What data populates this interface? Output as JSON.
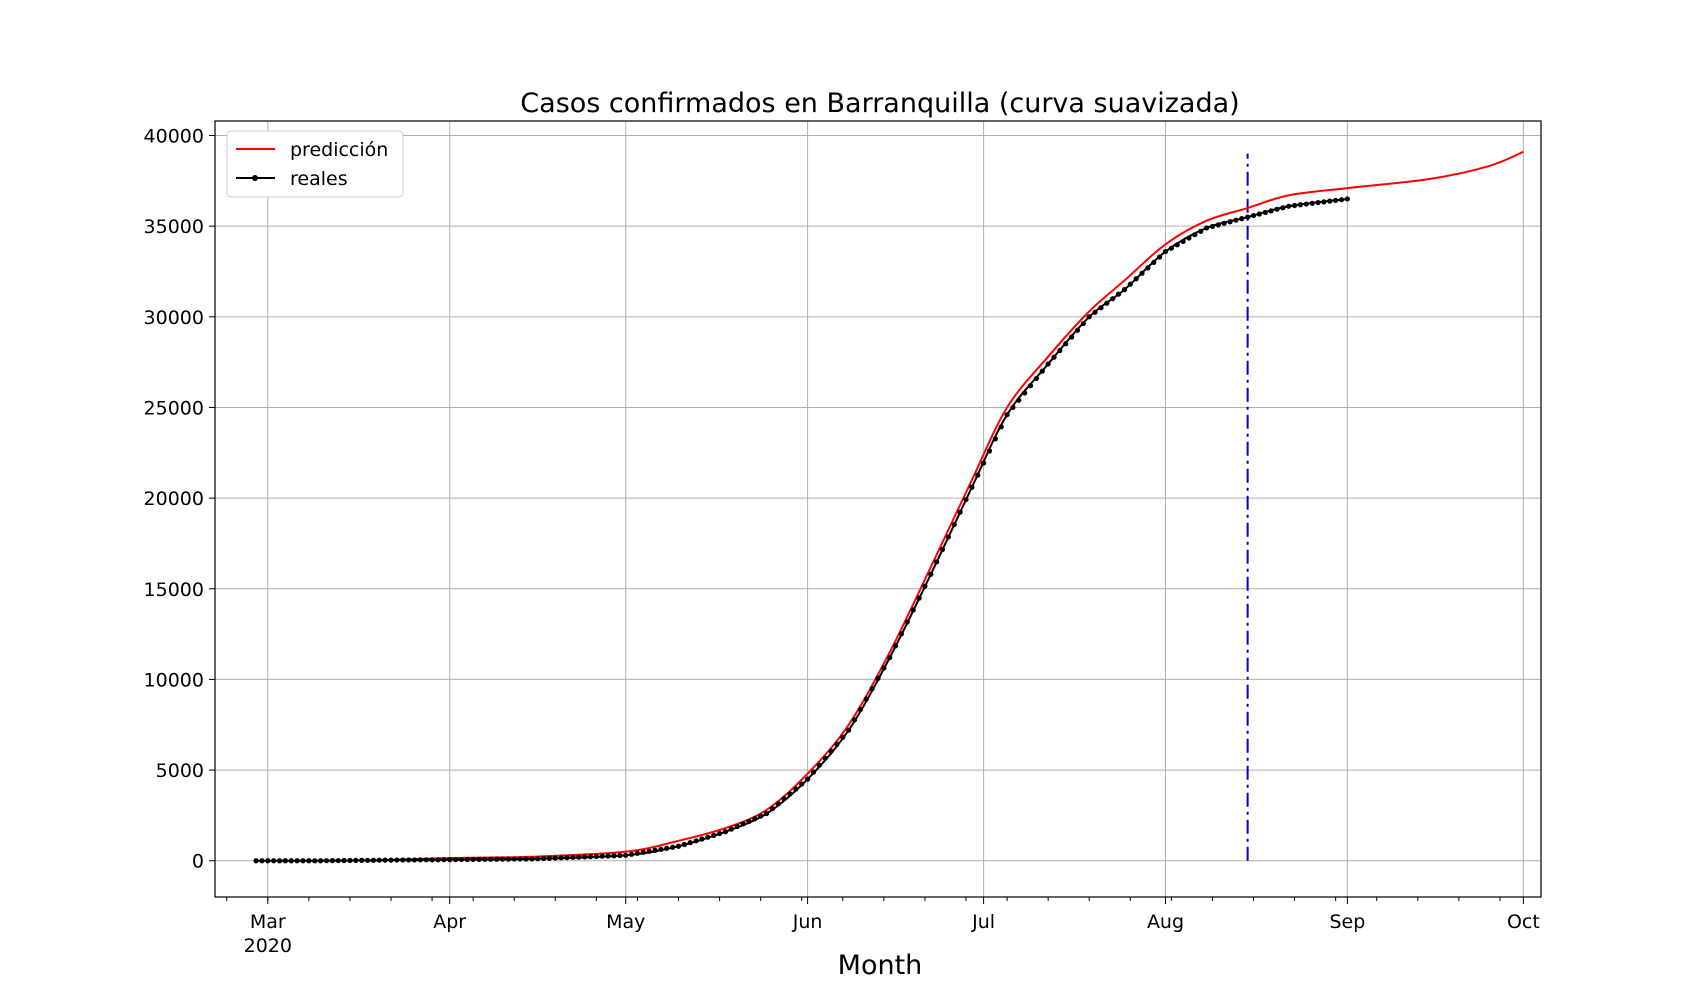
{
  "chart_data": {
    "type": "line",
    "title": "Casos confirmados en Barranquilla (curva suavizada)",
    "xlabel": "Month",
    "ylabel": "",
    "x_axis": {
      "type": "date",
      "range": [
        "2020-02-21",
        "2020-10-04"
      ],
      "tick_labels": [
        {
          "date": "2020-03-01",
          "label": "Mar",
          "sublabel": "2020"
        },
        {
          "date": "2020-04-01",
          "label": "Apr",
          "sublabel": ""
        },
        {
          "date": "2020-05-01",
          "label": "May",
          "sublabel": ""
        },
        {
          "date": "2020-06-01",
          "label": "Jun",
          "sublabel": ""
        },
        {
          "date": "2020-07-01",
          "label": "Jul",
          "sublabel": ""
        },
        {
          "date": "2020-08-01",
          "label": "Aug",
          "sublabel": ""
        },
        {
          "date": "2020-09-01",
          "label": "Sep",
          "sublabel": ""
        },
        {
          "date": "2020-10-01",
          "label": "Oct",
          "sublabel": ""
        }
      ]
    },
    "y_axis": {
      "range": [
        -2000,
        40800
      ],
      "ticks": [
        0,
        5000,
        10000,
        15000,
        20000,
        25000,
        30000,
        35000,
        40000
      ],
      "tick_labels": [
        "0",
        "5000",
        "10000",
        "15000",
        "20000",
        "25000",
        "30000",
        "35000",
        "40000"
      ]
    },
    "grid": true,
    "legend": {
      "position": "upper-left"
    },
    "series": [
      {
        "name": "predicción",
        "color": "#ff0000",
        "style": "solid",
        "points": [
          [
            "2020-03-18",
            0
          ],
          [
            "2020-04-01",
            150
          ],
          [
            "2020-04-15",
            220
          ],
          [
            "2020-05-01",
            500
          ],
          [
            "2020-05-10",
            1100
          ],
          [
            "2020-05-18",
            1800
          ],
          [
            "2020-05-25",
            2800
          ],
          [
            "2020-06-01",
            4800
          ],
          [
            "2020-06-08",
            7500
          ],
          [
            "2020-06-15",
            11500
          ],
          [
            "2020-06-22",
            16200
          ],
          [
            "2020-06-29",
            21000
          ],
          [
            "2020-07-05",
            25000
          ],
          [
            "2020-07-12",
            27800
          ],
          [
            "2020-07-19",
            30300
          ],
          [
            "2020-07-25",
            32000
          ],
          [
            "2020-08-01",
            34000
          ],
          [
            "2020-08-08",
            35300
          ],
          [
            "2020-08-15",
            36000
          ],
          [
            "2020-08-22",
            36700
          ],
          [
            "2020-09-01",
            37100
          ],
          [
            "2020-09-15",
            37600
          ],
          [
            "2020-09-25",
            38300
          ],
          [
            "2020-10-01",
            39100
          ]
        ]
      },
      {
        "name": "reales",
        "color": "#000000",
        "style": "solid-with-dots",
        "points": [
          [
            "2020-02-28",
            0
          ],
          [
            "2020-03-10",
            0
          ],
          [
            "2020-03-20",
            30
          ],
          [
            "2020-04-01",
            60
          ],
          [
            "2020-04-15",
            100
          ],
          [
            "2020-05-01",
            300
          ],
          [
            "2020-05-10",
            800
          ],
          [
            "2020-05-18",
            1600
          ],
          [
            "2020-05-25",
            2600
          ],
          [
            "2020-06-01",
            4500
          ],
          [
            "2020-06-08",
            7200
          ],
          [
            "2020-06-15",
            11200
          ],
          [
            "2020-06-22",
            15800
          ],
          [
            "2020-06-29",
            20600
          ],
          [
            "2020-07-05",
            24600
          ],
          [
            "2020-07-12",
            27400
          ],
          [
            "2020-07-19",
            30000
          ],
          [
            "2020-07-25",
            31500
          ],
          [
            "2020-08-01",
            33600
          ],
          [
            "2020-08-08",
            34900
          ],
          [
            "2020-08-15",
            35500
          ],
          [
            "2020-08-22",
            36100
          ],
          [
            "2020-09-01",
            36500
          ]
        ]
      }
    ],
    "annotations": [
      {
        "type": "vertical-line",
        "date": "2020-08-15",
        "y_from": 0,
        "y_to": 39000,
        "color": "#0000cc",
        "style": "dash-dot"
      }
    ]
  }
}
